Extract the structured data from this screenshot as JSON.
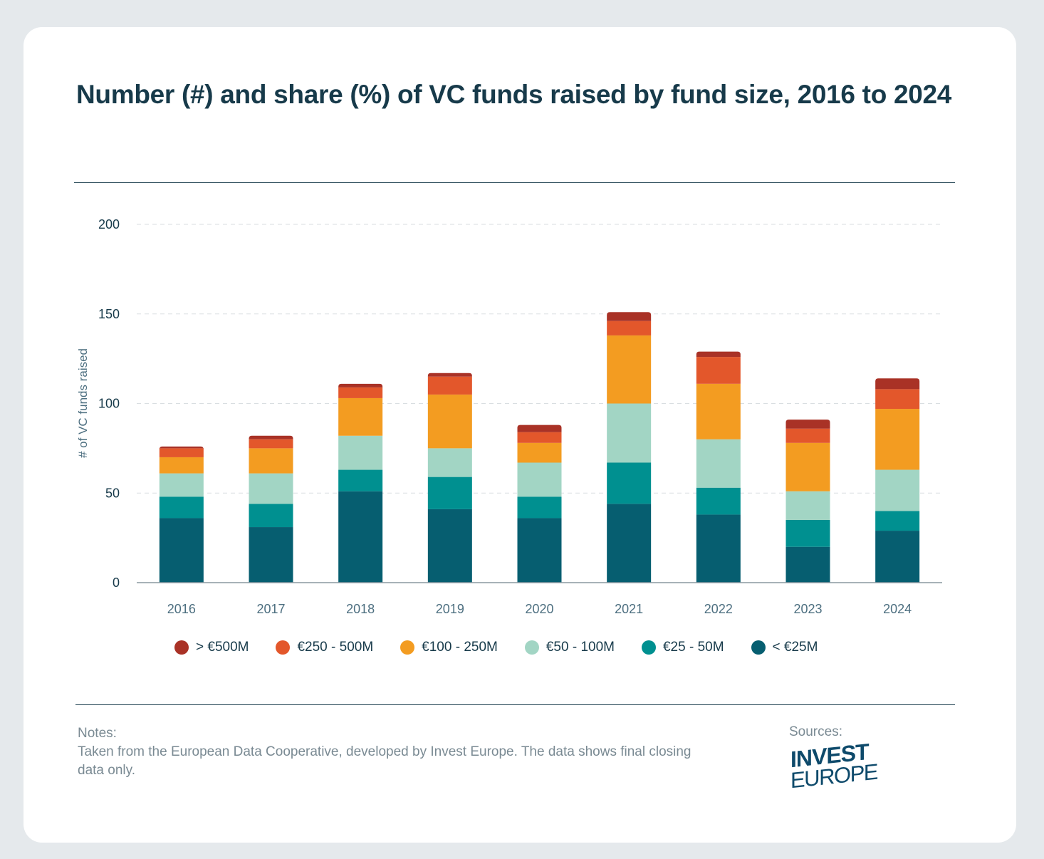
{
  "title": "Number (#) and share (%) of VC funds raised by fund size, 2016 to 2024",
  "chart_data": {
    "type": "bar",
    "stacked": true,
    "title": "Number (#) and share (%) of VC funds raised by fund size, 2016 to 2024",
    "xlabel": "",
    "ylabel": "# of VC funds raised",
    "ylim": [
      0,
      200
    ],
    "yticks": [
      "0",
      "50",
      "100",
      "150",
      "200"
    ],
    "grid": true,
    "legend_position": "bottom",
    "categories": [
      "2016",
      "2017",
      "2018",
      "2019",
      "2020",
      "2021",
      "2022",
      "2023",
      "2024"
    ],
    "series": [
      {
        "name": "< €25M",
        "color": "#065e70",
        "values": [
          36,
          31,
          51,
          41,
          36,
          44,
          38,
          20,
          29
        ]
      },
      {
        "name": "€25 - 50M",
        "color": "#009090",
        "values": [
          12,
          13,
          12,
          18,
          12,
          23,
          15,
          15,
          11
        ]
      },
      {
        "name": "€50 - 100M",
        "color": "#a2d5c4",
        "values": [
          13,
          17,
          19,
          16,
          19,
          33,
          27,
          16,
          23
        ]
      },
      {
        "name": "€100 - 250M",
        "color": "#f39c21",
        "values": [
          9,
          14,
          21,
          30,
          11,
          38,
          31,
          27,
          34
        ]
      },
      {
        "name": "€250 - 500M",
        "color": "#e3572b",
        "values": [
          5,
          5,
          6,
          10,
          6,
          8,
          15,
          8,
          11
        ]
      },
      {
        "name": "> €500M",
        "color": "#a93226",
        "values": [
          1,
          2,
          2,
          2,
          4,
          5,
          3,
          5,
          6
        ]
      }
    ],
    "legend_order": [
      5,
      4,
      3,
      2,
      1,
      0
    ]
  },
  "notes": {
    "label": "Notes:",
    "text": "Taken from the European Data Cooperative, developed by Invest Europe. The data shows final closing data only."
  },
  "sources": {
    "label": "Sources:",
    "logo_line1": "INVEST",
    "logo_line2": "EUROPE"
  }
}
